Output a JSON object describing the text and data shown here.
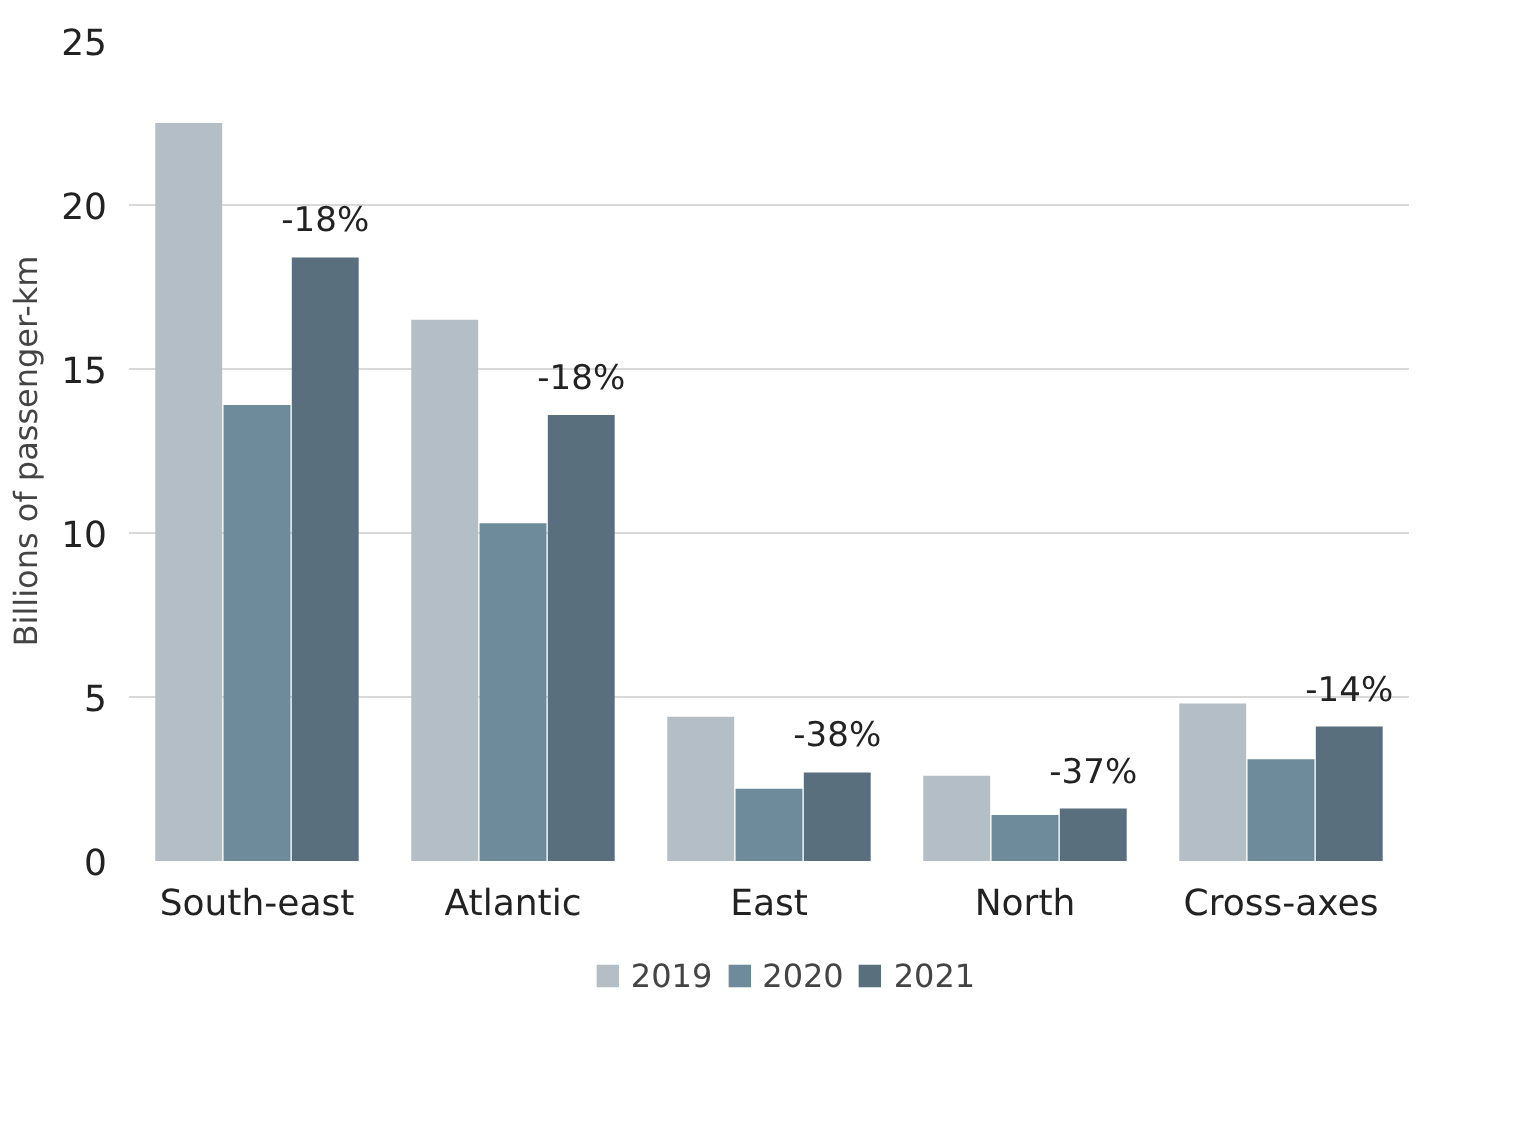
{
  "chart_data": {
    "type": "bar",
    "ylabel": "Billions of passenger-km",
    "categories": [
      "South-east",
      "Atlantic",
      "East",
      "North",
      "Cross-axes"
    ],
    "series": [
      {
        "name": "2019",
        "color": "#b4bec6",
        "values": [
          22.5,
          16.5,
          4.4,
          2.6,
          4.8
        ]
      },
      {
        "name": "2020",
        "color": "#6e8b9b",
        "values": [
          13.9,
          10.3,
          2.2,
          1.4,
          3.1
        ]
      },
      {
        "name": "2021",
        "color": "#5a6f7e",
        "values": [
          18.4,
          13.6,
          2.7,
          1.6,
          4.1
        ]
      }
    ],
    "ylim": [
      0,
      25
    ],
    "yticks": [
      0,
      5,
      10,
      15,
      20,
      25
    ],
    "grid": "y",
    "legend": "bottom",
    "annotations": [
      "-18%",
      "-18%",
      "-38%",
      "-37%",
      "-14%"
    ]
  }
}
